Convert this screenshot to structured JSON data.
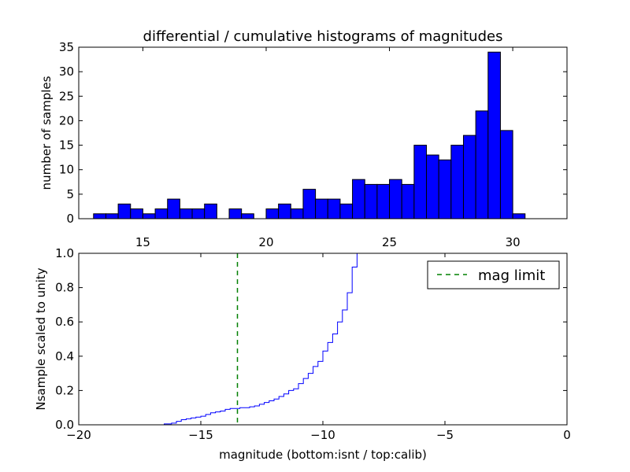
{
  "chart_data": [
    {
      "type": "bar",
      "title": "differential / cumulative histograms of magnitudes",
      "xlabel": "",
      "ylabel": "number of samples",
      "xlim": [
        12.4,
        32.2
      ],
      "ylim": [
        0,
        35
      ],
      "yticks": [
        0,
        5,
        10,
        15,
        20,
        25,
        30,
        35
      ],
      "xticks": [
        15,
        20,
        25,
        30
      ],
      "x_ticks_position": "bottom (inside gap between panels)",
      "grid": false,
      "bar_color": "#0000ff",
      "edge_color": "#000000",
      "bin_edges": [
        13.0,
        13.5,
        14.0,
        14.5,
        15.0,
        15.5,
        16.0,
        16.5,
        17.0,
        17.5,
        18.0,
        18.5,
        19.0,
        19.5,
        20.0,
        20.5,
        21.0,
        21.5,
        22.0,
        22.5,
        23.0,
        23.5,
        24.0,
        24.5,
        25.0,
        25.5,
        26.0,
        26.5,
        27.0,
        27.5,
        28.0,
        28.5,
        29.0,
        29.5,
        30.0,
        30.5,
        31.0
      ],
      "values": [
        1,
        1,
        3,
        2,
        1,
        2,
        4,
        2,
        2,
        3,
        0,
        2,
        1,
        0,
        2,
        3,
        2,
        6,
        4,
        4,
        3,
        8,
        7,
        7,
        8,
        7,
        15,
        13,
        12,
        15,
        17,
        22,
        34,
        18,
        1,
        0
      ]
    },
    {
      "type": "line",
      "drawstyle": "steps",
      "title": "",
      "xlabel": "magnitude (bottom:isnt / top:calib)",
      "ylabel": "Nsample scaled to unity",
      "xlim": [
        -20,
        0
      ],
      "ylim": [
        0,
        1
      ],
      "xticks": [
        -20,
        -15,
        -10,
        -5,
        0
      ],
      "xtick_labels": [
        "−20",
        "−15",
        "−10",
        "−5",
        "0"
      ],
      "yticks": [
        0.0,
        0.2,
        0.4,
        0.6,
        0.8,
        1.0
      ],
      "ytick_labels": [
        "0.0",
        "0.2",
        "0.4",
        "0.6",
        "0.8",
        "1.0"
      ],
      "grid": false,
      "legend": {
        "position": "top-right",
        "entries": [
          "mag limit"
        ]
      },
      "series": [
        {
          "kind": "cumulative-step",
          "color": "#0000ff",
          "x": [
            -19.0,
            -16.5,
            -16.2,
            -16.0,
            -15.8,
            -15.6,
            -15.4,
            -15.2,
            -15.0,
            -14.8,
            -14.6,
            -14.4,
            -14.2,
            -14.0,
            -13.8,
            -13.6,
            -13.4,
            -13.2,
            -13.0,
            -12.8,
            -12.6,
            -12.4,
            -12.2,
            -12.0,
            -11.8,
            -11.6,
            -11.4,
            -11.2,
            -11.0,
            -10.8,
            -10.6,
            -10.4,
            -10.2,
            -10.0,
            -9.8,
            -9.6,
            -9.4,
            -9.2,
            -9.0,
            -8.8,
            -8.6,
            -8.4,
            -8.2
          ],
          "y": [
            0.0,
            0.005,
            0.01,
            0.02,
            0.03,
            0.035,
            0.04,
            0.045,
            0.05,
            0.06,
            0.07,
            0.075,
            0.08,
            0.09,
            0.095,
            0.095,
            0.1,
            0.1,
            0.105,
            0.11,
            0.12,
            0.13,
            0.14,
            0.15,
            0.165,
            0.18,
            0.2,
            0.21,
            0.24,
            0.27,
            0.3,
            0.34,
            0.37,
            0.43,
            0.48,
            0.53,
            0.6,
            0.67,
            0.77,
            0.92,
            1.0,
            1.0,
            1.0
          ]
        },
        {
          "name": "mag limit",
          "kind": "vline",
          "color": "#008000",
          "linestyle": "dashed",
          "x": -13.5
        }
      ]
    }
  ]
}
